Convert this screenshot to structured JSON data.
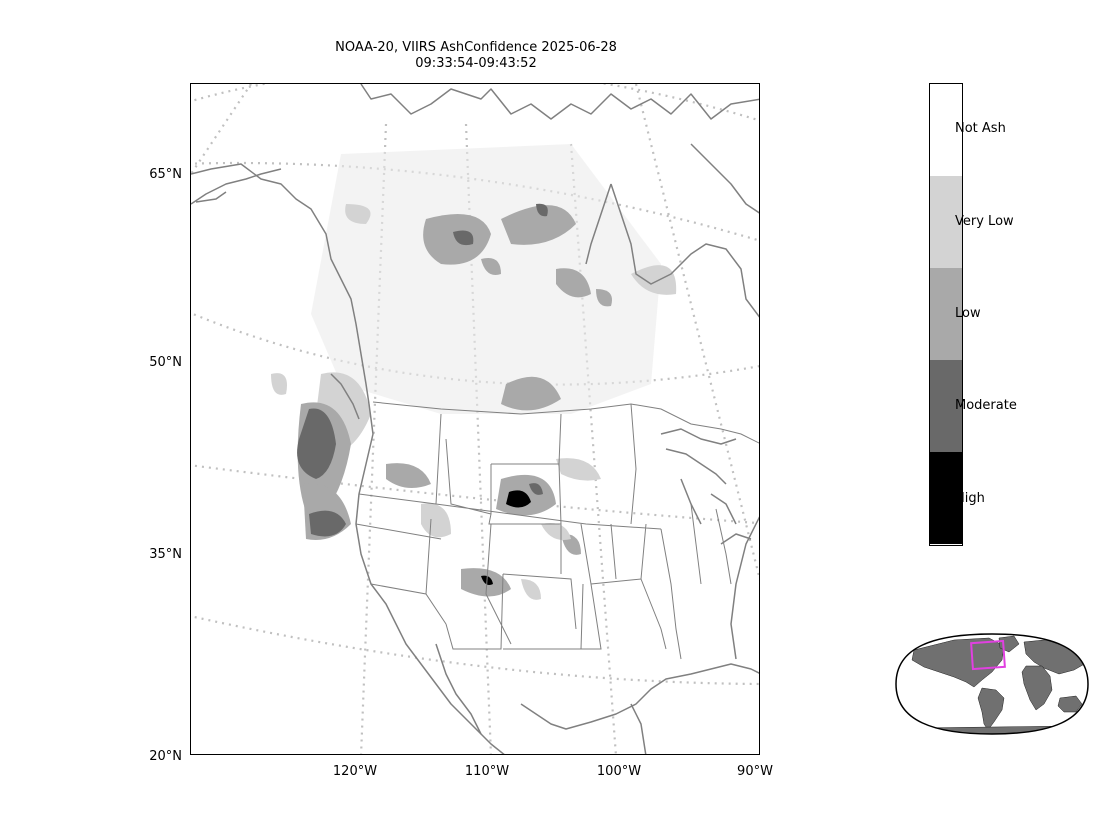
{
  "title": {
    "line1": "NOAA-20, VIIRS AshConfidence 2025-06-28",
    "line2": "09:33:54-09:43:52"
  },
  "lat_labels": [
    "65°N",
    "50°N",
    "35°N",
    "20°N"
  ],
  "lon_labels": [
    "120°W",
    "110°W",
    "100°W",
    "90°W"
  ],
  "colorbar": {
    "categories": [
      {
        "label": "Not Ash",
        "color": "#ffffff"
      },
      {
        "label": "Very Low",
        "color": "#d3d3d3"
      },
      {
        "label": "Low",
        "color": "#a9a9a9"
      },
      {
        "label": "Moderate",
        "color": "#696969"
      },
      {
        "label": "High",
        "color": "#000000"
      }
    ]
  },
  "colors": {
    "coastline": "#808080",
    "graticule": "#c0c0c0",
    "inset_box": "#e040e0",
    "inset_land": "#707070"
  }
}
